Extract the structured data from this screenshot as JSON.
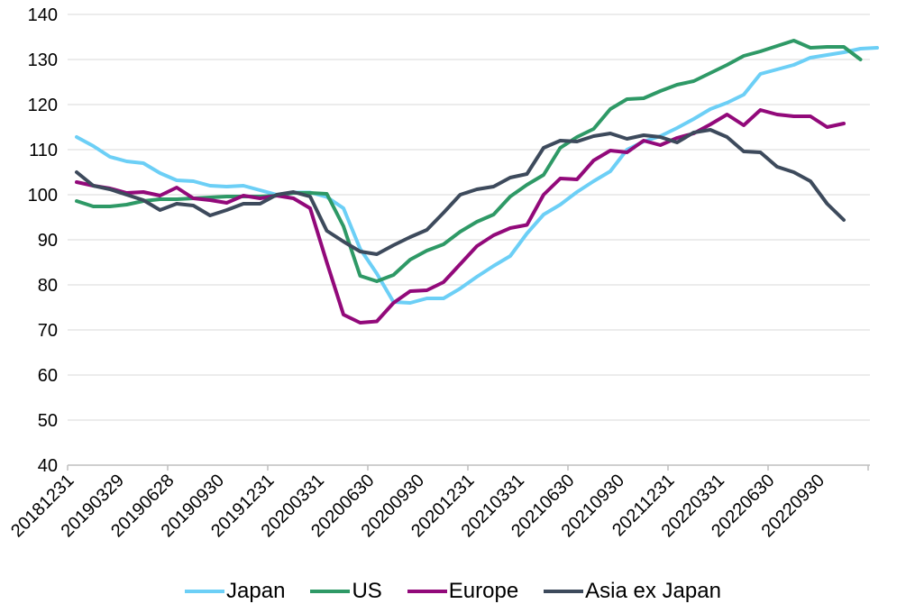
{
  "chart_data": {
    "type": "line",
    "title": "",
    "xlabel": "",
    "ylabel": "",
    "ylim": [
      40,
      140
    ],
    "yticks": [
      40,
      50,
      60,
      70,
      80,
      90,
      100,
      110,
      120,
      130,
      140
    ],
    "grid": "horizontal",
    "legend_position": "bottom",
    "x_tick_labels": [
      "20181231",
      "20190329",
      "20190628",
      "20190930",
      "20191231",
      "20200331",
      "20200630",
      "20200930",
      "20201231",
      "20210331",
      "20210630",
      "20210930",
      "20211231",
      "20220331",
      "20220630",
      "20220930"
    ],
    "series": [
      {
        "name": "Japan",
        "color": "#6ccff6",
        "values": [
          112.8,
          110.8,
          108.4,
          107.4,
          107.0,
          104.8,
          103.2,
          103.0,
          102.0,
          101.8,
          102.0,
          101.0,
          100.0,
          100.5,
          100.5,
          99.5,
          97.0,
          88.0,
          82.5,
          76.2,
          76.0,
          77.0,
          77.0,
          79.2,
          81.8,
          84.2,
          86.4,
          91.4,
          95.6,
          97.8,
          100.6,
          103.0,
          105.2,
          110.0,
          111.8,
          113.0,
          114.8,
          116.8,
          119.0,
          120.4,
          122.2,
          126.8,
          127.8,
          128.8,
          130.4,
          131.0,
          131.6,
          132.4,
          132.6
        ]
      },
      {
        "name": "US",
        "color": "#2e9966",
        "values": [
          98.6,
          97.4,
          97.4,
          97.8,
          98.6,
          99.0,
          99.0,
          99.2,
          99.4,
          99.6,
          99.6,
          99.6,
          99.8,
          100.4,
          100.4,
          100.2,
          93.0,
          82.0,
          80.8,
          82.2,
          85.6,
          87.6,
          89.0,
          91.8,
          94.0,
          95.6,
          99.6,
          102.2,
          104.4,
          110.4,
          112.8,
          114.6,
          119.0,
          121.2,
          121.4,
          123.0,
          124.4,
          125.2,
          127.0,
          128.8,
          130.8,
          131.8,
          133.0,
          134.2,
          132.6,
          132.8,
          132.8,
          130.0
        ]
      },
      {
        "name": "Europe",
        "color": "#92097a",
        "values": [
          102.8,
          102.0,
          101.4,
          100.4,
          100.6,
          99.8,
          101.6,
          99.2,
          98.8,
          98.2,
          99.8,
          99.2,
          99.8,
          99.2,
          97.0,
          85.0,
          73.4,
          71.6,
          71.9,
          76.0,
          78.6,
          78.8,
          80.6,
          84.6,
          88.6,
          91.0,
          92.6,
          93.3,
          100.0,
          103.6,
          103.4,
          107.6,
          109.8,
          109.4,
          112.0,
          111.0,
          112.6,
          113.6,
          115.6,
          117.8,
          115.4,
          118.8,
          117.8,
          117.4,
          117.4,
          115.0,
          115.8
        ]
      },
      {
        "name": "Asia ex Japan",
        "color": "#3d4a5c",
        "values": [
          105.0,
          102.0,
          101.2,
          100.0,
          98.8,
          96.6,
          98.0,
          97.6,
          95.4,
          96.6,
          98.0,
          98.0,
          100.0,
          100.6,
          99.6,
          92.0,
          89.6,
          87.4,
          86.8,
          88.8,
          90.6,
          92.2,
          96.0,
          100.0,
          101.2,
          101.8,
          103.8,
          104.6,
          110.4,
          112.0,
          111.8,
          113.0,
          113.6,
          112.4,
          113.2,
          112.8,
          111.6,
          113.8,
          114.4,
          112.8,
          109.6,
          109.4,
          106.2,
          105.0,
          103.0,
          98.0,
          94.4
        ]
      }
    ]
  }
}
